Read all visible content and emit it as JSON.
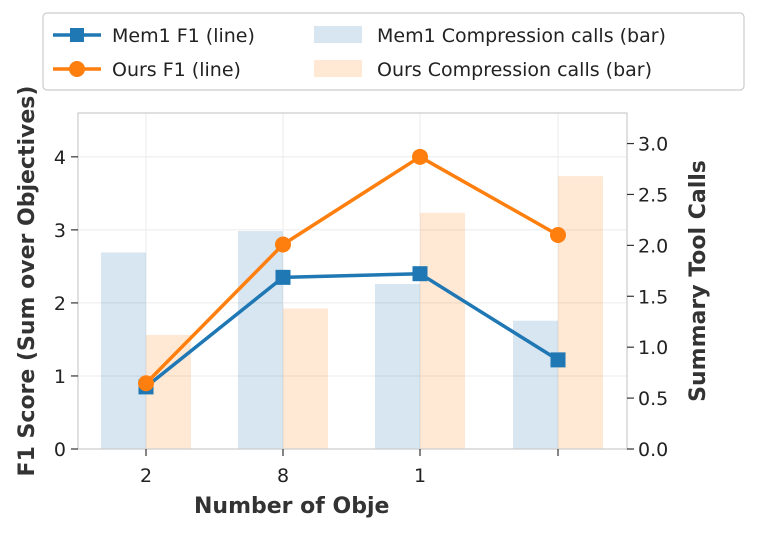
{
  "chart_data": {
    "type": "bar",
    "categories": [
      "2",
      "8",
      "1",
      ""
    ],
    "xlabel": "Number of Obje",
    "ylabel_left": "F1 Score (Sum over Objectives)",
    "ylabel_right": "Summary Tool Calls",
    "ylim_left": [
      0,
      4.6
    ],
    "ylim_right": [
      0,
      3.3
    ],
    "yticks_left": [
      "0",
      "1",
      "2",
      "3",
      "4"
    ],
    "yticks_right": [
      "0.0",
      "0.5",
      "1.0",
      "1.5",
      "2.0",
      "2.5",
      "3.0"
    ],
    "grid": true,
    "legend_position": "top",
    "line_series": [
      {
        "name": "Mem1 F1 (line)",
        "values": [
          0.85,
          2.35,
          2.4,
          1.22
        ],
        "color": "#1f77b4",
        "marker": "square"
      },
      {
        "name": "Ours F1 (line)",
        "values": [
          0.9,
          2.8,
          4.0,
          2.93
        ],
        "color": "#ff7f0e",
        "marker": "circle"
      }
    ],
    "bar_series": [
      {
        "name": "Mem1 Compression calls (bar)",
        "values": [
          1.93,
          2.14,
          1.62,
          1.26
        ],
        "color": "#1f77b4"
      },
      {
        "name": "Ours Compression calls (bar)",
        "values": [
          1.12,
          1.38,
          2.32,
          2.68
        ],
        "color": "#ff7f0e"
      }
    ]
  }
}
